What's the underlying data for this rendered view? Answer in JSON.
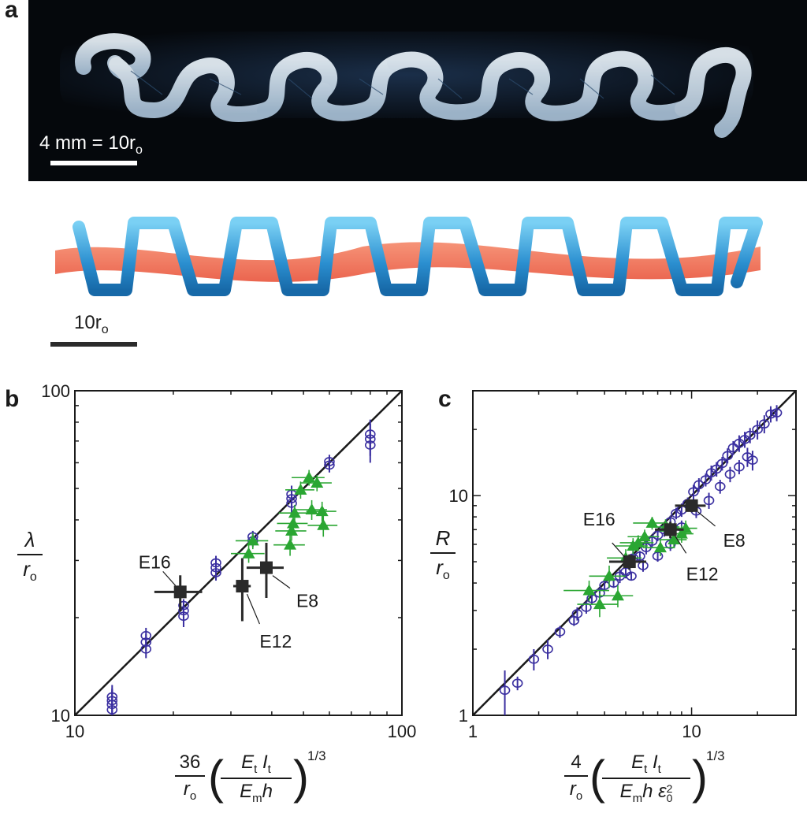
{
  "panel_a": {
    "letter": "a",
    "photo_scale_label": "4 mm = 10r",
    "photo_scale_sub": "o",
    "render_scale_label": "10r",
    "render_scale_sub": "o"
  },
  "panel_b": {
    "letter": "b",
    "ylabel_num": "λ",
    "ylabel_den": "r",
    "ylabel_den_sub": "o",
    "xlabel_coef": "36",
    "xlabel_coef_den": "r",
    "xlabel_coef_den_sub": "o",
    "xlabel_inner_num": "E",
    "xlabel_inner_num_sub": "t",
    "xlabel_inner_num2": "I",
    "xlabel_inner_num2_sub": "t",
    "xlabel_inner_den": "E",
    "xlabel_inner_den_sub": "m",
    "xlabel_inner_den2": "h",
    "xlabel_power": "1/3"
  },
  "panel_c": {
    "letter": "c",
    "ylabel_num": "R",
    "ylabel_den": "r",
    "ylabel_den_sub": "o",
    "xlabel_coef": "4",
    "xlabel_coef_den": "r",
    "xlabel_coef_den_sub": "o",
    "xlabel_inner_num": "E",
    "xlabel_inner_num_sub": "t",
    "xlabel_inner_num2": "I",
    "xlabel_inner_num2_sub": "t",
    "xlabel_inner_den": "E",
    "xlabel_inner_den_sub": "m",
    "xlabel_inner_den2": "h ε",
    "xlabel_inner_den2_sub": "0",
    "xlabel_inner_den2_sup": "2",
    "xlabel_power": "1/3"
  },
  "chart_data": [
    {
      "type": "scatter",
      "panel": "b",
      "xscale": "log",
      "yscale": "log",
      "xlim": [
        10,
        100
      ],
      "ylim": [
        10,
        100
      ],
      "xticks": [
        "10",
        "100"
      ],
      "yticks": [
        "10",
        "100"
      ],
      "reference_line": {
        "slope": 1,
        "from": [
          10,
          10
        ],
        "to": [
          100,
          100
        ]
      },
      "series": [
        {
          "marker": "open-circle",
          "color": "#3a2fa0",
          "points": [
            [
              13,
              10.4,
              1.5
            ],
            [
              13,
              10.8,
              1.2
            ],
            [
              13,
              11.1,
              1.0
            ],
            [
              13,
              11.4,
              1.0
            ],
            [
              16.5,
              16.0,
              1.0
            ],
            [
              16.5,
              16.8,
              1.0
            ],
            [
              16.5,
              17.6,
              1.0
            ],
            [
              21.5,
              20.2,
              1.5
            ],
            [
              21.5,
              21.0,
              1.2
            ],
            [
              21.5,
              21.8,
              1.0
            ],
            [
              27,
              27.5,
              1.5
            ],
            [
              27,
              28.5,
              1.5
            ],
            [
              27,
              29.5,
              1.5
            ],
            [
              35,
              34.5,
              1.5
            ],
            [
              35,
              35.5,
              1.5
            ],
            [
              46,
              45.0,
              3.0
            ],
            [
              46,
              46.5,
              3.0
            ],
            [
              46,
              48.0,
              3.0
            ],
            [
              60,
              59.0,
              3.0
            ],
            [
              60,
              60.5,
              3.0
            ],
            [
              80,
              68.0,
              8.0
            ],
            [
              80,
              71.0,
              8.0
            ],
            [
              80,
              73.5,
              8.0
            ]
          ]
        },
        {
          "marker": "triangle",
          "color": "#2aa632",
          "points": [
            [
              34,
              31.5,
              4.0,
              2.0
            ],
            [
              35,
              34.5,
              4.0,
              2.0
            ],
            [
              45.5,
              33.5,
              5.0,
              2.5
            ],
            [
              46,
              37.0,
              5.0,
              2.5
            ],
            [
              46.5,
              39.0,
              5.0,
              2.5
            ],
            [
              47,
              42.0,
              5.0,
              2.5
            ],
            [
              49,
              49.5,
              5.0,
              3.0
            ],
            [
              52,
              54.0,
              6.0,
              3.0
            ],
            [
              53,
              43.0,
              6.0,
              3.0
            ],
            [
              55,
              52.0,
              6.0,
              3.0
            ],
            [
              57,
              42.5,
              6.0,
              3.0
            ],
            [
              57.5,
              38.5,
              6.0,
              3.0
            ]
          ]
        },
        {
          "marker": "filled-square",
          "color": "#2a2a2a",
          "points": [
            {
              "label": "E16",
              "x": 21,
              "y": 24,
              "xerr": 3.5,
              "yerr": 3.0
            },
            {
              "label": "E12",
              "x": 32.5,
              "y": 25,
              "xerr": 2.0,
              "yerr": 5.5
            },
            {
              "label": "E8",
              "x": 38.5,
              "y": 28.5,
              "xerr": 5.0,
              "yerr": 5.5
            }
          ]
        }
      ]
    },
    {
      "type": "scatter",
      "panel": "c",
      "xscale": "log",
      "yscale": "log",
      "xlim": [
        1,
        30
      ],
      "ylim": [
        1,
        30
      ],
      "xticks": [
        "1",
        "10"
      ],
      "yticks": [
        "1",
        "10"
      ],
      "reference_line": {
        "slope": 1,
        "from": [
          1,
          1
        ],
        "to": [
          30,
          30
        ]
      },
      "series": [
        {
          "marker": "open-circle",
          "color": "#3a2fa0",
          "points": [
            [
              1.4,
              1.3,
              0.3
            ],
            [
              1.6,
              1.4,
              0.1
            ],
            [
              1.9,
              1.8,
              0.2
            ],
            [
              2.2,
              2.0,
              0.2
            ],
            [
              2.5,
              2.4,
              0.15
            ],
            [
              2.9,
              2.7,
              0.15
            ],
            [
              3.0,
              2.9,
              0.2
            ],
            [
              3.3,
              3.1,
              0.2
            ],
            [
              3.5,
              3.4,
              0.2
            ],
            [
              3.8,
              3.6,
              0.2
            ],
            [
              4.0,
              3.9,
              0.2
            ],
            [
              4.4,
              4.0,
              0.2
            ],
            [
              4.7,
              4.3,
              0.3
            ],
            [
              5.0,
              4.5,
              0.3
            ],
            [
              5.4,
              5.2,
              0.4
            ],
            [
              5.8,
              5.3,
              0.3
            ],
            [
              6.2,
              5.8,
              0.4
            ],
            [
              6.6,
              6.2,
              0.4
            ],
            [
              7.0,
              6.6,
              0.4
            ],
            [
              7.5,
              7.0,
              0.5
            ],
            [
              8.0,
              7.6,
              0.5
            ],
            [
              8.5,
              8.3,
              0.5
            ],
            [
              9.0,
              8.6,
              0.6
            ],
            [
              9.6,
              9.2,
              0.6
            ],
            [
              10.2,
              10.4,
              0.8
            ],
            [
              10.8,
              11.2,
              0.8
            ],
            [
              11.6,
              11.8,
              0.8
            ],
            [
              12.3,
              12.7,
              1.0
            ],
            [
              13.0,
              13.2,
              1.0
            ],
            [
              13.8,
              14.0,
              1.0
            ],
            [
              14.6,
              15.2,
              1.2
            ],
            [
              15.5,
              16.5,
              1.2
            ],
            [
              16.5,
              17.3,
              1.5
            ],
            [
              17.5,
              18.0,
              1.5
            ],
            [
              18.5,
              18.8,
              1.5
            ],
            [
              20.0,
              20.0,
              2.0
            ],
            [
              21.5,
              21.2,
              2.0
            ],
            [
              23.0,
              23.5,
              2.0
            ],
            [
              24.5,
              23.8,
              2.0
            ],
            [
              5.3,
              4.3,
              0.2
            ],
            [
              6.0,
              4.8,
              0.3
            ],
            [
              7.0,
              5.3,
              0.3
            ],
            [
              8.0,
              6.0,
              0.4
            ],
            [
              9.0,
              7.2,
              0.5
            ],
            [
              10.5,
              8.5,
              0.6
            ],
            [
              12.0,
              9.5,
              0.8
            ],
            [
              13.5,
              11.0,
              0.8
            ],
            [
              15.0,
              12.5,
              1.0
            ],
            [
              16.5,
              13.5,
              1.0
            ],
            [
              18.0,
              15.0,
              1.5
            ],
            [
              19.0,
              14.5,
              1.5
            ]
          ]
        },
        {
          "marker": "triangle",
          "color": "#2aa632",
          "points": [
            [
              3.4,
              3.7,
              0.8,
              0.4
            ],
            [
              3.8,
              3.2,
              0.8,
              0.4
            ],
            [
              4.2,
              4.3,
              0.8,
              0.5
            ],
            [
              4.6,
              3.5,
              0.8,
              0.4
            ],
            [
              5.0,
              5.2,
              0.9,
              0.5
            ],
            [
              5.4,
              5.9,
              0.9,
              0.5
            ],
            [
              5.7,
              6.1,
              1.0,
              0.5
            ],
            [
              6.1,
              6.5,
              1.0,
              0.5
            ],
            [
              6.6,
              7.5,
              1.2,
              0.5
            ],
            [
              7.2,
              5.8,
              1.2,
              0.5
            ],
            [
              7.6,
              7.2,
              1.2,
              0.6
            ],
            [
              8.3,
              6.3,
              1.2,
              0.5
            ],
            [
              9.0,
              6.7,
              1.2,
              0.6
            ],
            [
              9.4,
              7.1,
              1.2,
              0.6
            ]
          ]
        },
        {
          "marker": "filled-square",
          "color": "#2a2a2a",
          "points": [
            {
              "label": "E16",
              "x": 5.2,
              "y": 5.0,
              "xerr": 1.0,
              "yerr": 0.4
            },
            {
              "label": "E12",
              "x": 8.0,
              "y": 7.0,
              "xerr": 1.2,
              "yerr": 0.6
            },
            {
              "label": "E8",
              "x": 10.0,
              "y": 9.0,
              "xerr": 1.6,
              "yerr": 0.6
            }
          ]
        }
      ]
    }
  ]
}
